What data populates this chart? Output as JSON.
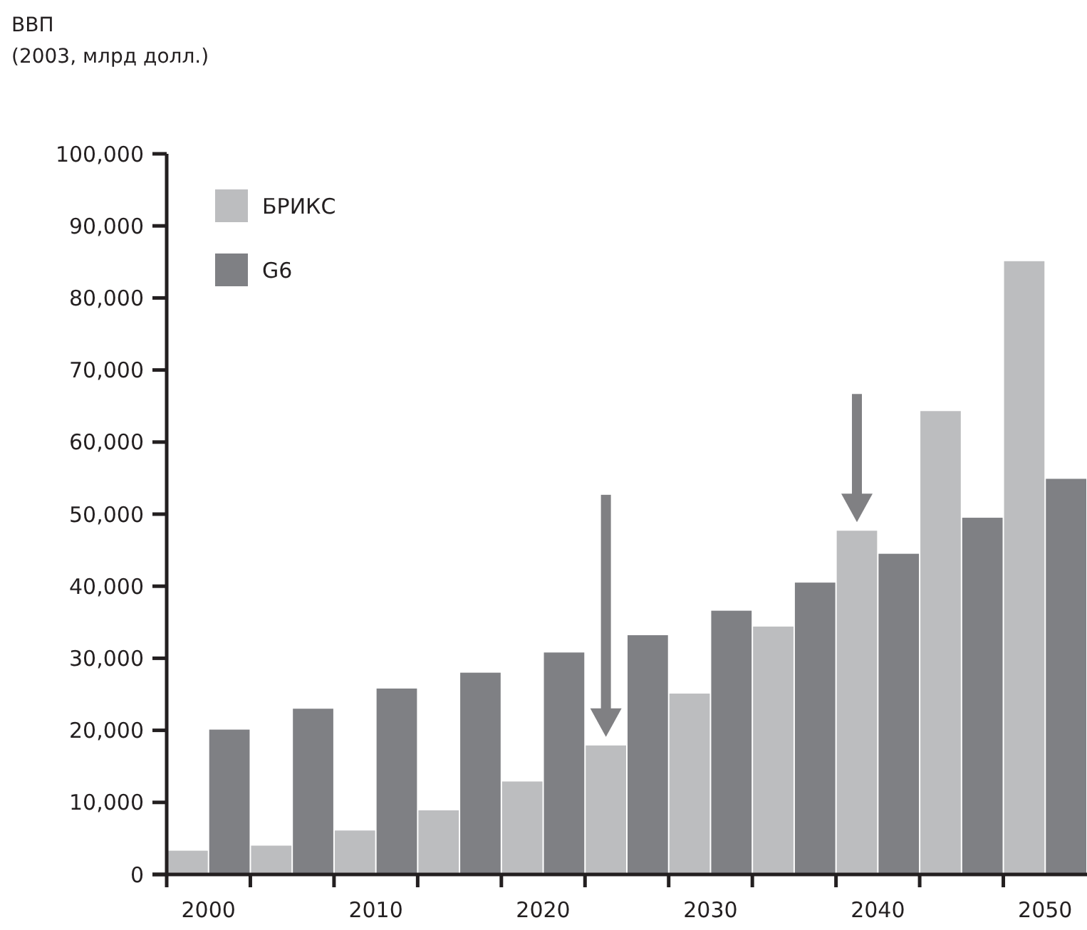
{
  "chart_data": {
    "type": "bar",
    "title": "ВВП",
    "subtitle": "(2003, млрд долл.)",
    "categories": [
      "2000",
      null,
      "2010",
      null,
      "2020",
      null,
      "2030",
      null,
      "2040",
      null,
      "2050"
    ],
    "series": [
      {
        "name": "БРИКС",
        "color": "#bcbdbf",
        "values": [
          3300,
          4000,
          6100,
          8900,
          12900,
          17900,
          25100,
          34400,
          47700,
          64300,
          85100
        ]
      },
      {
        "name": "G6",
        "color": "#7f8084",
        "values": [
          20100,
          23000,
          25800,
          28000,
          30800,
          33200,
          36600,
          40500,
          44500,
          49500,
          54900
        ]
      }
    ],
    "ylim": [
      0,
      100000
    ],
    "yticks": [
      {
        "value": 0,
        "label": "0"
      },
      {
        "value": 10000,
        "label": "10,000"
      },
      {
        "value": 20000,
        "label": "20,000"
      },
      {
        "value": 30000,
        "label": "30,000"
      },
      {
        "value": 40000,
        "label": "40,000"
      },
      {
        "value": 50000,
        "label": "50,000"
      },
      {
        "value": 60000,
        "label": "60,000"
      },
      {
        "value": 70000,
        "label": "70,000"
      },
      {
        "value": 80000,
        "label": "80,000"
      },
      {
        "value": 90000,
        "label": "90,000"
      },
      {
        "value": 100000,
        "label": "100,000"
      }
    ],
    "grid": false,
    "legend": "top left"
  }
}
